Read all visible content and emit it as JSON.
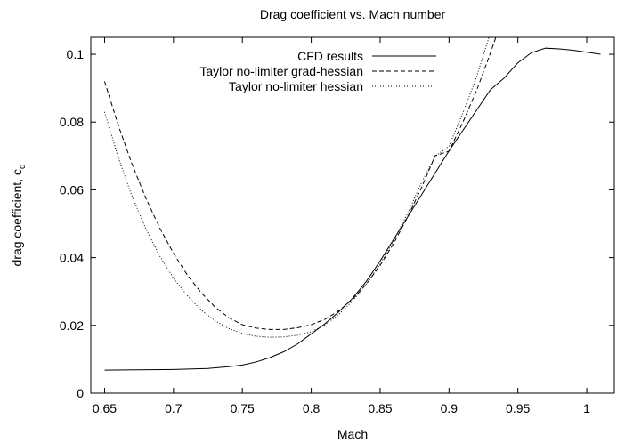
{
  "chart_data": {
    "type": "line",
    "title": "Drag coefficient vs. Mach number",
    "xlabel": "Mach",
    "ylabel": "drag coefficient, c",
    "ylabel_subscript": "d",
    "xlim": [
      0.64,
      1.02
    ],
    "ylim": [
      0,
      0.105
    ],
    "x_ticks": [
      "0.65",
      "0.7",
      "0.75",
      "0.8",
      "0.85",
      "0.9",
      "0.95",
      "1"
    ],
    "y_ticks": [
      "0",
      "0.02",
      "0.04",
      "0.06",
      "0.08",
      "0.1"
    ],
    "grid": false,
    "legend_position": "top-right",
    "series": [
      {
        "name": "CFD results",
        "style": "solid",
        "x": [
          0.65,
          0.675,
          0.7,
          0.725,
          0.74,
          0.75,
          0.76,
          0.77,
          0.78,
          0.79,
          0.8,
          0.81,
          0.82,
          0.83,
          0.84,
          0.85,
          0.86,
          0.87,
          0.88,
          0.89,
          0.9,
          0.91,
          0.92,
          0.93,
          0.94,
          0.95,
          0.96,
          0.97,
          0.98,
          0.99,
          1.0,
          1.01
        ],
        "y": [
          0.0068,
          0.0069,
          0.007,
          0.0073,
          0.0078,
          0.0083,
          0.0092,
          0.0105,
          0.0122,
          0.0145,
          0.0175,
          0.0205,
          0.024,
          0.028,
          0.033,
          0.039,
          0.0455,
          0.052,
          0.0585,
          0.065,
          0.0715,
          0.0775,
          0.0835,
          0.0895,
          0.093,
          0.0975,
          0.1005,
          0.1018,
          0.1016,
          0.1012,
          0.1006,
          0.1
        ]
      },
      {
        "name": "Taylor no-limiter grad-hessian",
        "style": "dashed",
        "x": [
          0.65,
          0.66,
          0.67,
          0.68,
          0.69,
          0.7,
          0.71,
          0.72,
          0.73,
          0.74,
          0.75,
          0.76,
          0.77,
          0.78,
          0.79,
          0.8,
          0.81,
          0.82,
          0.83,
          0.84,
          0.85,
          0.86,
          0.87,
          0.88,
          0.89,
          0.9,
          0.91,
          0.92,
          0.93,
          0.935
        ],
        "y": [
          0.092,
          0.079,
          0.0675,
          0.0575,
          0.0488,
          0.0413,
          0.0349,
          0.0297,
          0.0255,
          0.0223,
          0.0202,
          0.0192,
          0.0188,
          0.0188,
          0.0193,
          0.0202,
          0.0218,
          0.0243,
          0.0277,
          0.0322,
          0.0377,
          0.0443,
          0.052,
          0.0606,
          0.0701,
          0.0714,
          0.0799,
          0.0893,
          0.1003,
          0.1062
        ]
      },
      {
        "name": "Taylor no-limiter hessian",
        "style": "dotted",
        "x": [
          0.65,
          0.66,
          0.67,
          0.68,
          0.69,
          0.7,
          0.71,
          0.72,
          0.73,
          0.74,
          0.75,
          0.76,
          0.77,
          0.78,
          0.79,
          0.8,
          0.81,
          0.82,
          0.83,
          0.84,
          0.85,
          0.86,
          0.87,
          0.88,
          0.89,
          0.9,
          0.91,
          0.92,
          0.93
        ],
        "y": [
          0.083,
          0.0695,
          0.058,
          0.0485,
          0.0405,
          0.034,
          0.0288,
          0.0246,
          0.0214,
          0.0191,
          0.0176,
          0.0168,
          0.0165,
          0.0166,
          0.0171,
          0.0181,
          0.0202,
          0.0232,
          0.0272,
          0.0322,
          0.0381,
          0.0451,
          0.0531,
          0.0621,
          0.0699,
          0.0729,
          0.0826,
          0.0933,
          0.1063
        ]
      }
    ]
  }
}
